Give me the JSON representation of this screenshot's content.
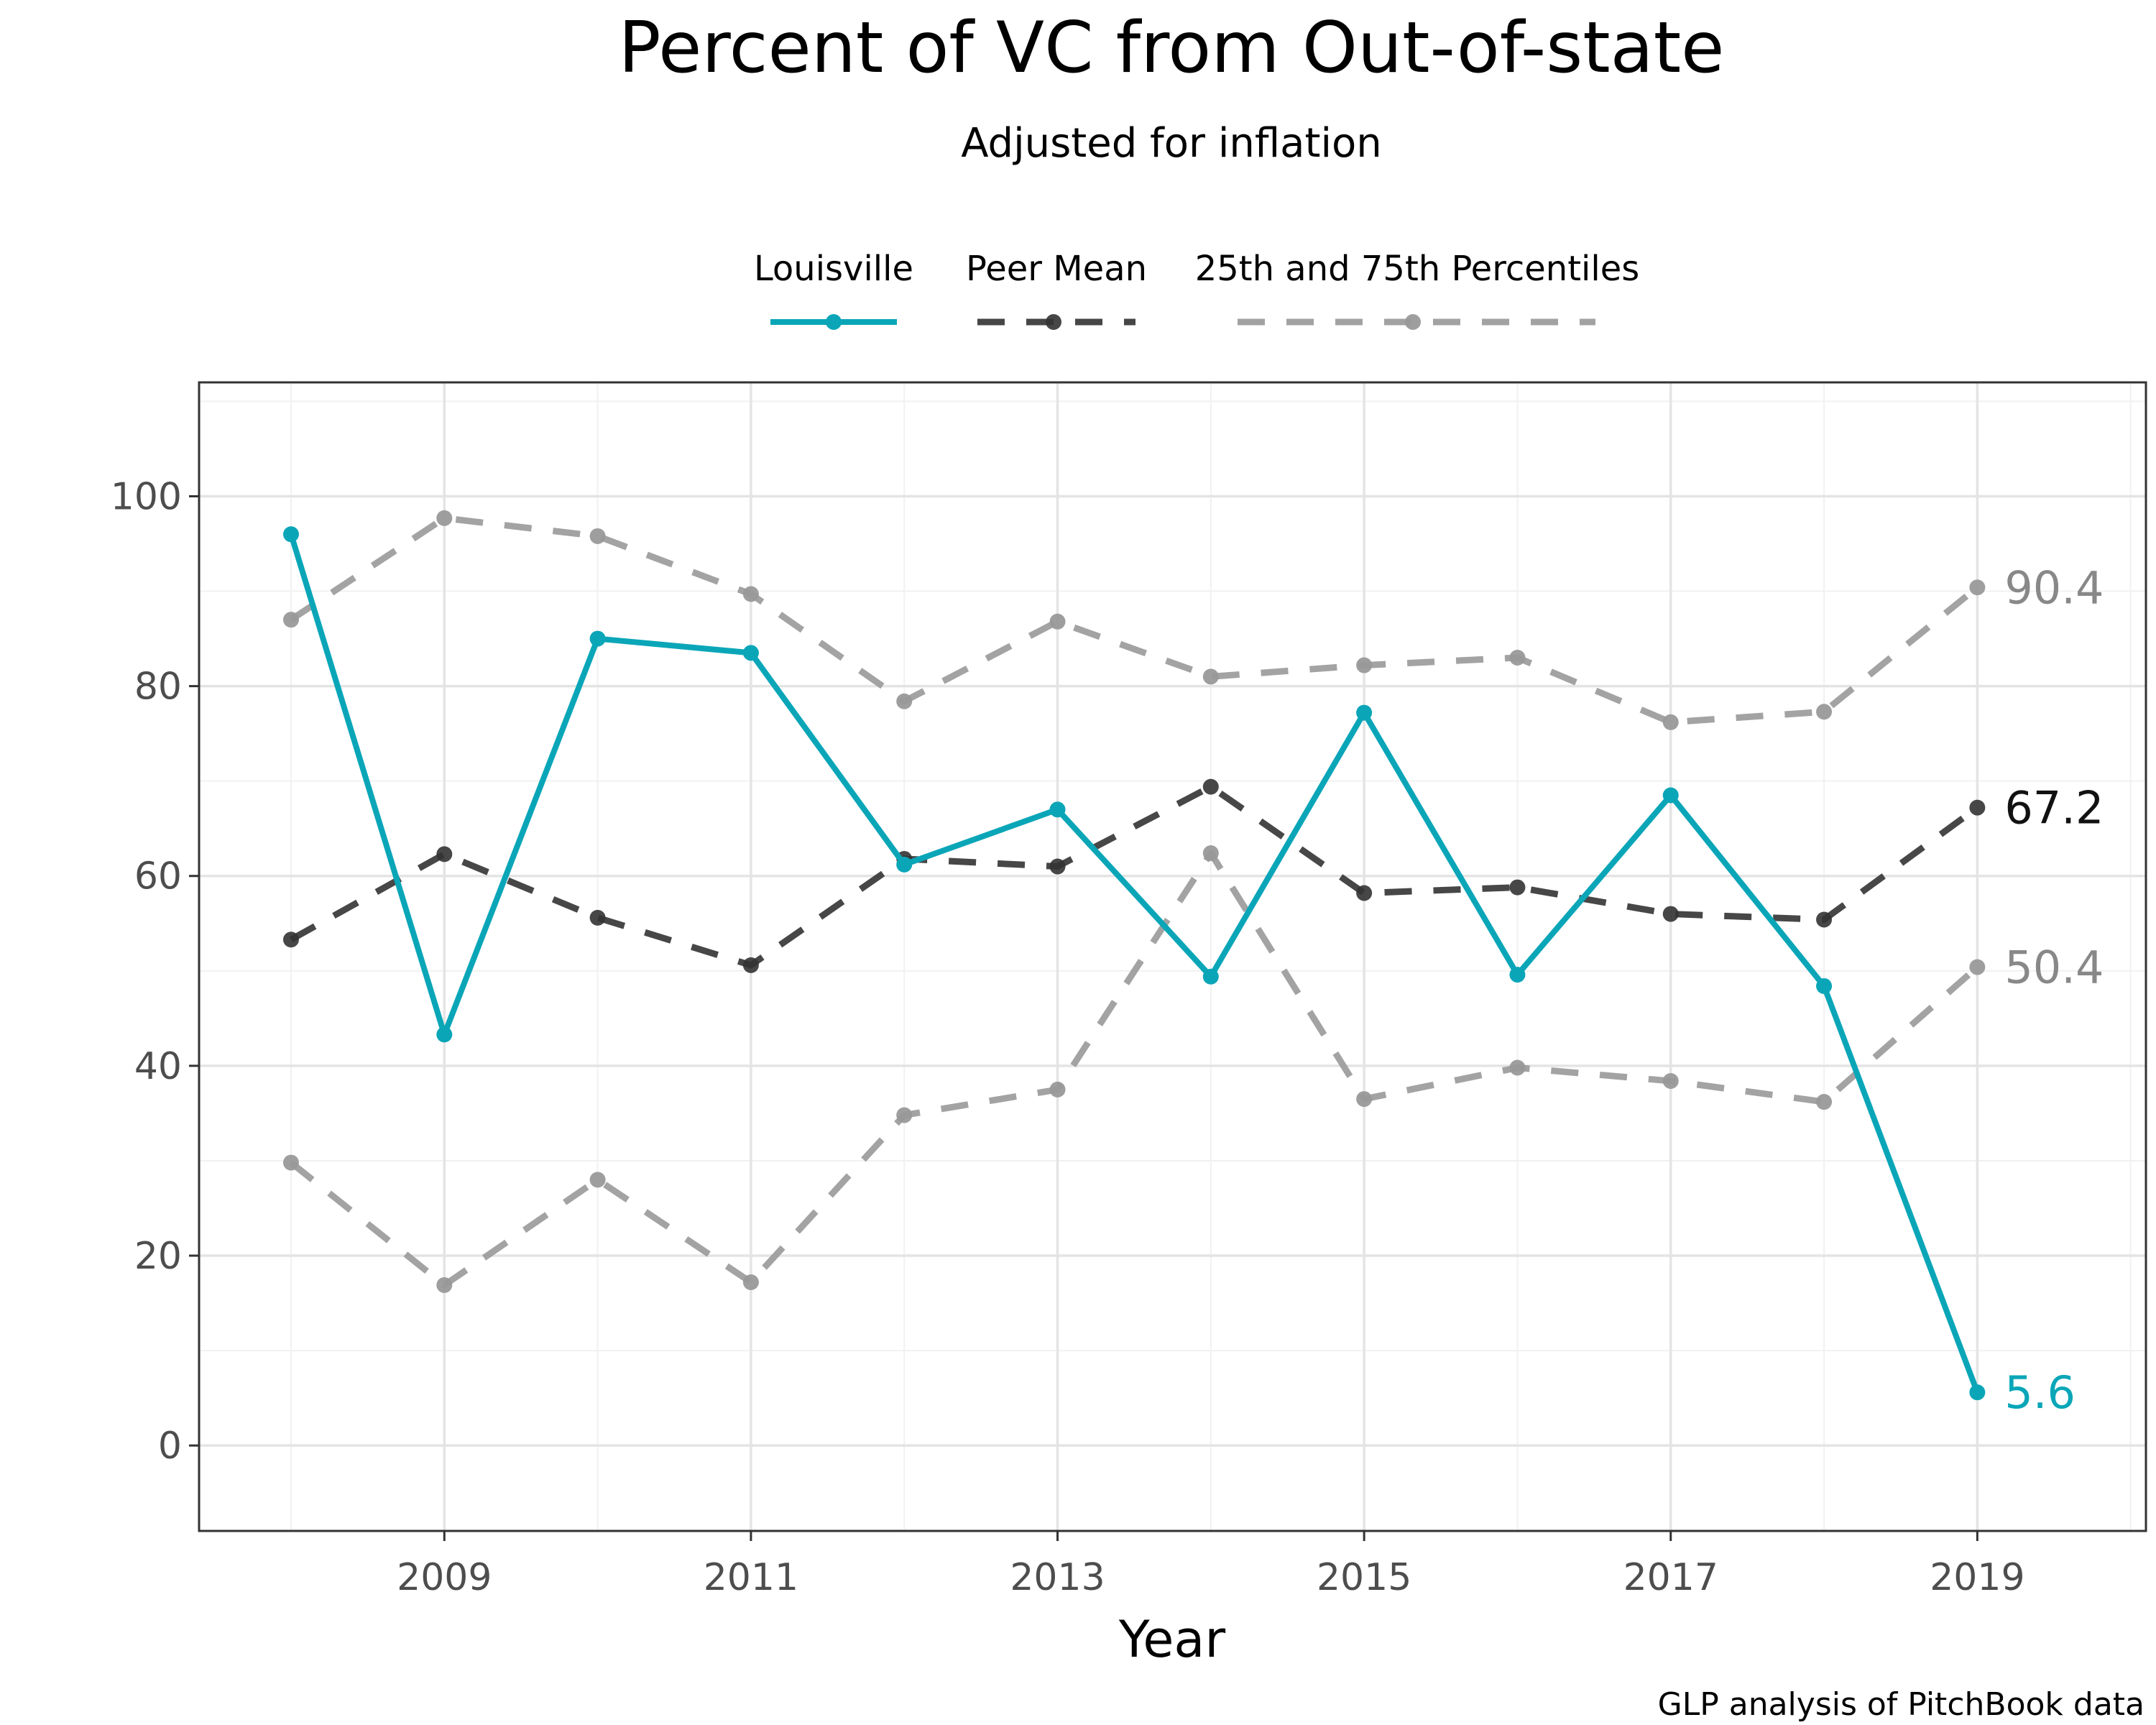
{
  "chart_data": {
    "type": "line",
    "title": "Percent of VC from Out-of-state",
    "subtitle": "Adjusted for inflation",
    "xlabel": "Year",
    "ylabel": "",
    "caption": "GLP analysis of PitchBook data",
    "x": [
      2008,
      2009,
      2010,
      2011,
      2012,
      2013,
      2014,
      2015,
      2016,
      2017,
      2018,
      2019
    ],
    "xlim": [
      2007.4,
      2020.1
    ],
    "ylim": [
      -9,
      112
    ],
    "x_ticks": [
      2009,
      2011,
      2013,
      2015,
      2017,
      2019
    ],
    "x_tick_labels": [
      "2009",
      "2011",
      "2013",
      "2015",
      "2017",
      "2019"
    ],
    "y_ticks": [
      0,
      20,
      40,
      60,
      80,
      100
    ],
    "y_tick_labels": [
      "0",
      "20",
      "40",
      "60",
      "80",
      "100"
    ],
    "grid": true,
    "legend_position": "top",
    "series": [
      {
        "name": "Louisville",
        "color": "#0aa6b8",
        "style": "solid",
        "values": [
          96.0,
          43.3,
          85.0,
          83.5,
          61.2,
          67.0,
          49.4,
          77.2,
          49.6,
          68.5,
          48.4,
          5.6
        ]
      },
      {
        "name": "Peer Mean",
        "color": "#333333",
        "style": "dashed",
        "values": [
          53.3,
          62.3,
          55.6,
          50.6,
          61.8,
          61.0,
          69.4,
          58.2,
          58.8,
          56.0,
          55.4,
          67.2
        ]
      },
      {
        "name": "25th and 75th Percentiles",
        "color": "#999999",
        "style": "dashed",
        "values_upper": [
          87.0,
          97.7,
          95.8,
          89.7,
          78.4,
          86.8,
          81.0,
          82.2,
          83.0,
          76.2,
          77.3,
          90.4
        ],
        "values_lower": [
          29.8,
          16.9,
          28.0,
          17.2,
          34.8,
          37.5,
          62.4,
          36.5,
          39.8,
          38.4,
          36.2,
          50.4
        ]
      }
    ],
    "end_labels": {
      "louisville": "5.6",
      "peer_mean": "67.2",
      "upper": "90.4",
      "lower": "50.4"
    }
  }
}
